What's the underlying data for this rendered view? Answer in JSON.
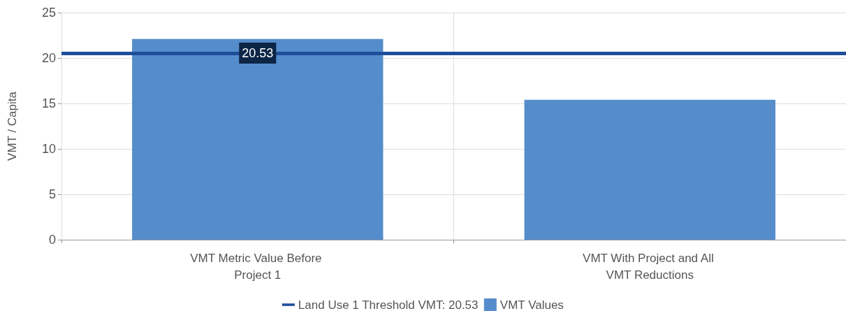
{
  "chart_data": {
    "type": "bar",
    "ylabel": "VMT / Capita",
    "categories": [
      "VMT Metric Value Before Project 1",
      "VMT With Project and All VMT Reductions"
    ],
    "series": [
      {
        "name": "VMT Values",
        "color": "#558ccb",
        "values": [
          22.1,
          15.4
        ]
      }
    ],
    "ylim": [
      0,
      25
    ],
    "yticks": [
      0,
      5,
      10,
      15,
      20,
      25
    ],
    "grid": true,
    "legend": "bottom",
    "annotations": [
      {
        "text": "20.53",
        "x": "VMT Metric Value Before Project 1",
        "y": 20.53
      }
    ],
    "ref_lines": [
      {
        "axis": "y",
        "value": 20.53,
        "label": "Land Use 1 Threshold VMT: 20.53",
        "color": "#1f4e99"
      }
    ]
  }
}
